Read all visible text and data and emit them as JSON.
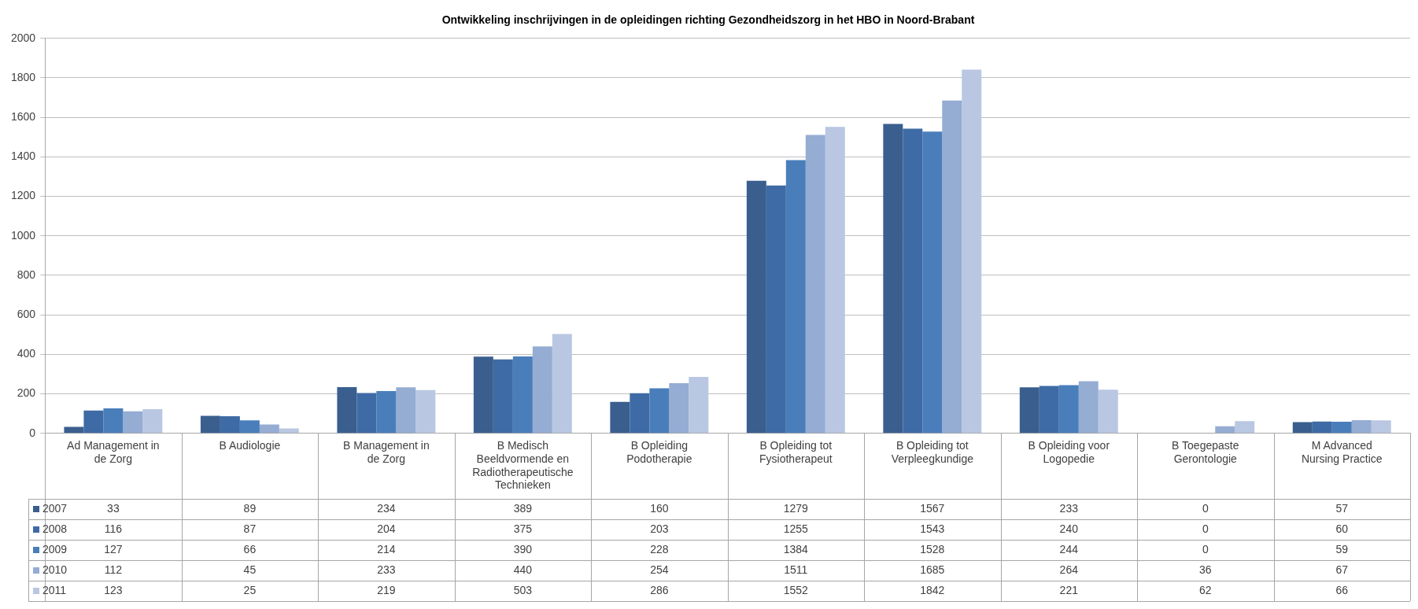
{
  "chart_data": {
    "type": "bar",
    "title": "Ontwikkeling inschrijvingen in de opleidingen richting Gezondheidszorg in het HBO in Noord-Brabant",
    "categories": [
      "Ad Management in de Zorg",
      "B Audiologie",
      "B Management in de Zorg",
      "B Medisch Beeldvormende en Radiotherapeutische Technieken",
      "B Opleiding Podotherapie",
      "B Opleiding tot Fysiotherapeut",
      "B Opleiding tot Verpleegkundige",
      "B Opleiding voor Logopedie",
      "B Toegepaste Gerontologie",
      "M Advanced Nursing Practice"
    ],
    "series": [
      {
        "name": "2007",
        "color": "#3a5f8f",
        "values": [
          33,
          89,
          234,
          389,
          160,
          1279,
          1567,
          233,
          0,
          57
        ]
      },
      {
        "name": "2008",
        "color": "#3e6ba5",
        "values": [
          116,
          87,
          204,
          375,
          203,
          1255,
          1543,
          240,
          0,
          60
        ]
      },
      {
        "name": "2009",
        "color": "#4a7ebb",
        "values": [
          127,
          66,
          214,
          390,
          228,
          1384,
          1528,
          244,
          0,
          59
        ]
      },
      {
        "name": "2010",
        "color": "#95acd3",
        "values": [
          112,
          45,
          233,
          440,
          254,
          1511,
          1685,
          264,
          36,
          67
        ]
      },
      {
        "name": "2011",
        "color": "#b9c7e2",
        "values": [
          123,
          25,
          219,
          503,
          286,
          1552,
          1842,
          221,
          62,
          66
        ]
      }
    ],
    "ylim": [
      0,
      2000
    ],
    "yticks": [
      0,
      200,
      400,
      600,
      800,
      1000,
      1200,
      1400,
      1600,
      1800,
      2000
    ],
    "grid": "y",
    "legend": "bottom",
    "data_labels": true
  }
}
